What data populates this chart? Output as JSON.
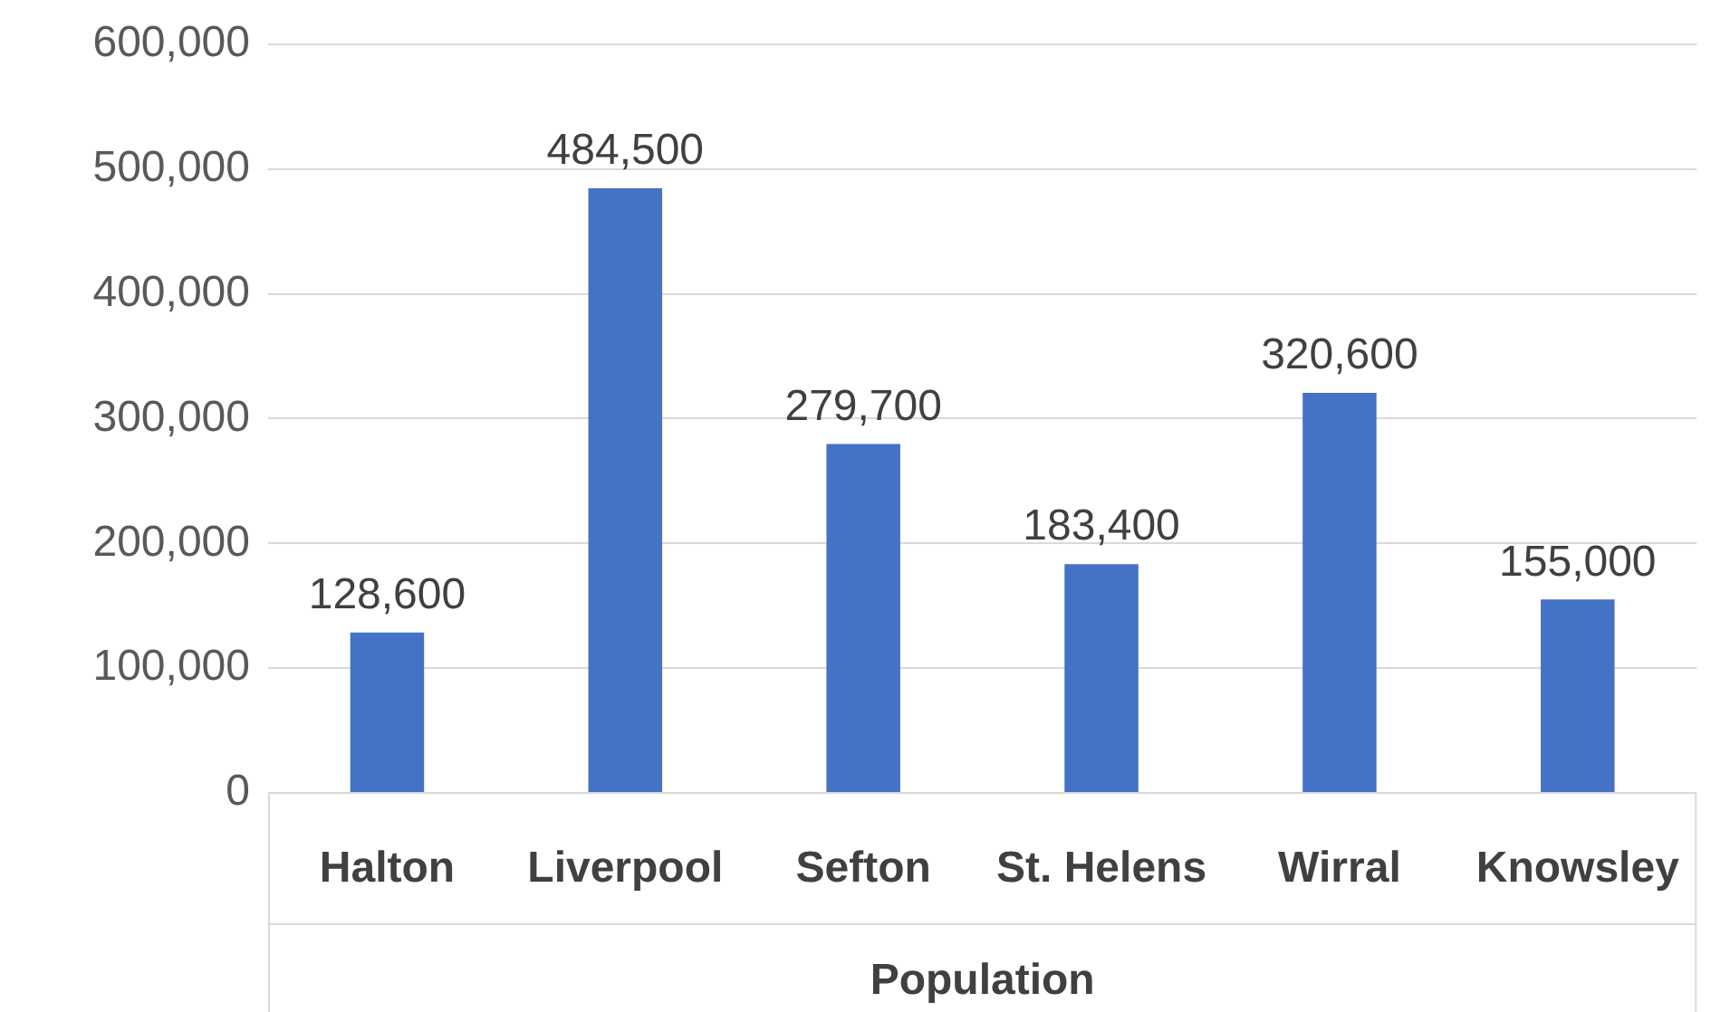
{
  "chart_data": {
    "type": "bar",
    "xlabel": "Population",
    "categories": [
      "Halton",
      "Liverpool",
      "Sefton",
      "St. Helens",
      "Wirral",
      "Knowsley"
    ],
    "values": [
      128600,
      484500,
      279700,
      183400,
      320600,
      155000
    ],
    "color": "#4472c4",
    "value_labels": [
      "128,600",
      "484,500",
      "279,700",
      "183,400",
      "320,600",
      "155,000"
    ],
    "ylim": [
      0,
      600000
    ],
    "yticks": [
      0,
      {
        "value": 100000,
        "label": "100,000"
      },
      {
        "value": 200000,
        "label": "200,000"
      },
      {
        "value": 300000,
        "label": "300,000"
      },
      {
        "value": 400000,
        "label": "400,000"
      },
      {
        "value": 500000,
        "label": "500,000"
      },
      {
        "value": 600000,
        "label": "600,000"
      }
    ],
    "grid": "y",
    "legend": false
  }
}
